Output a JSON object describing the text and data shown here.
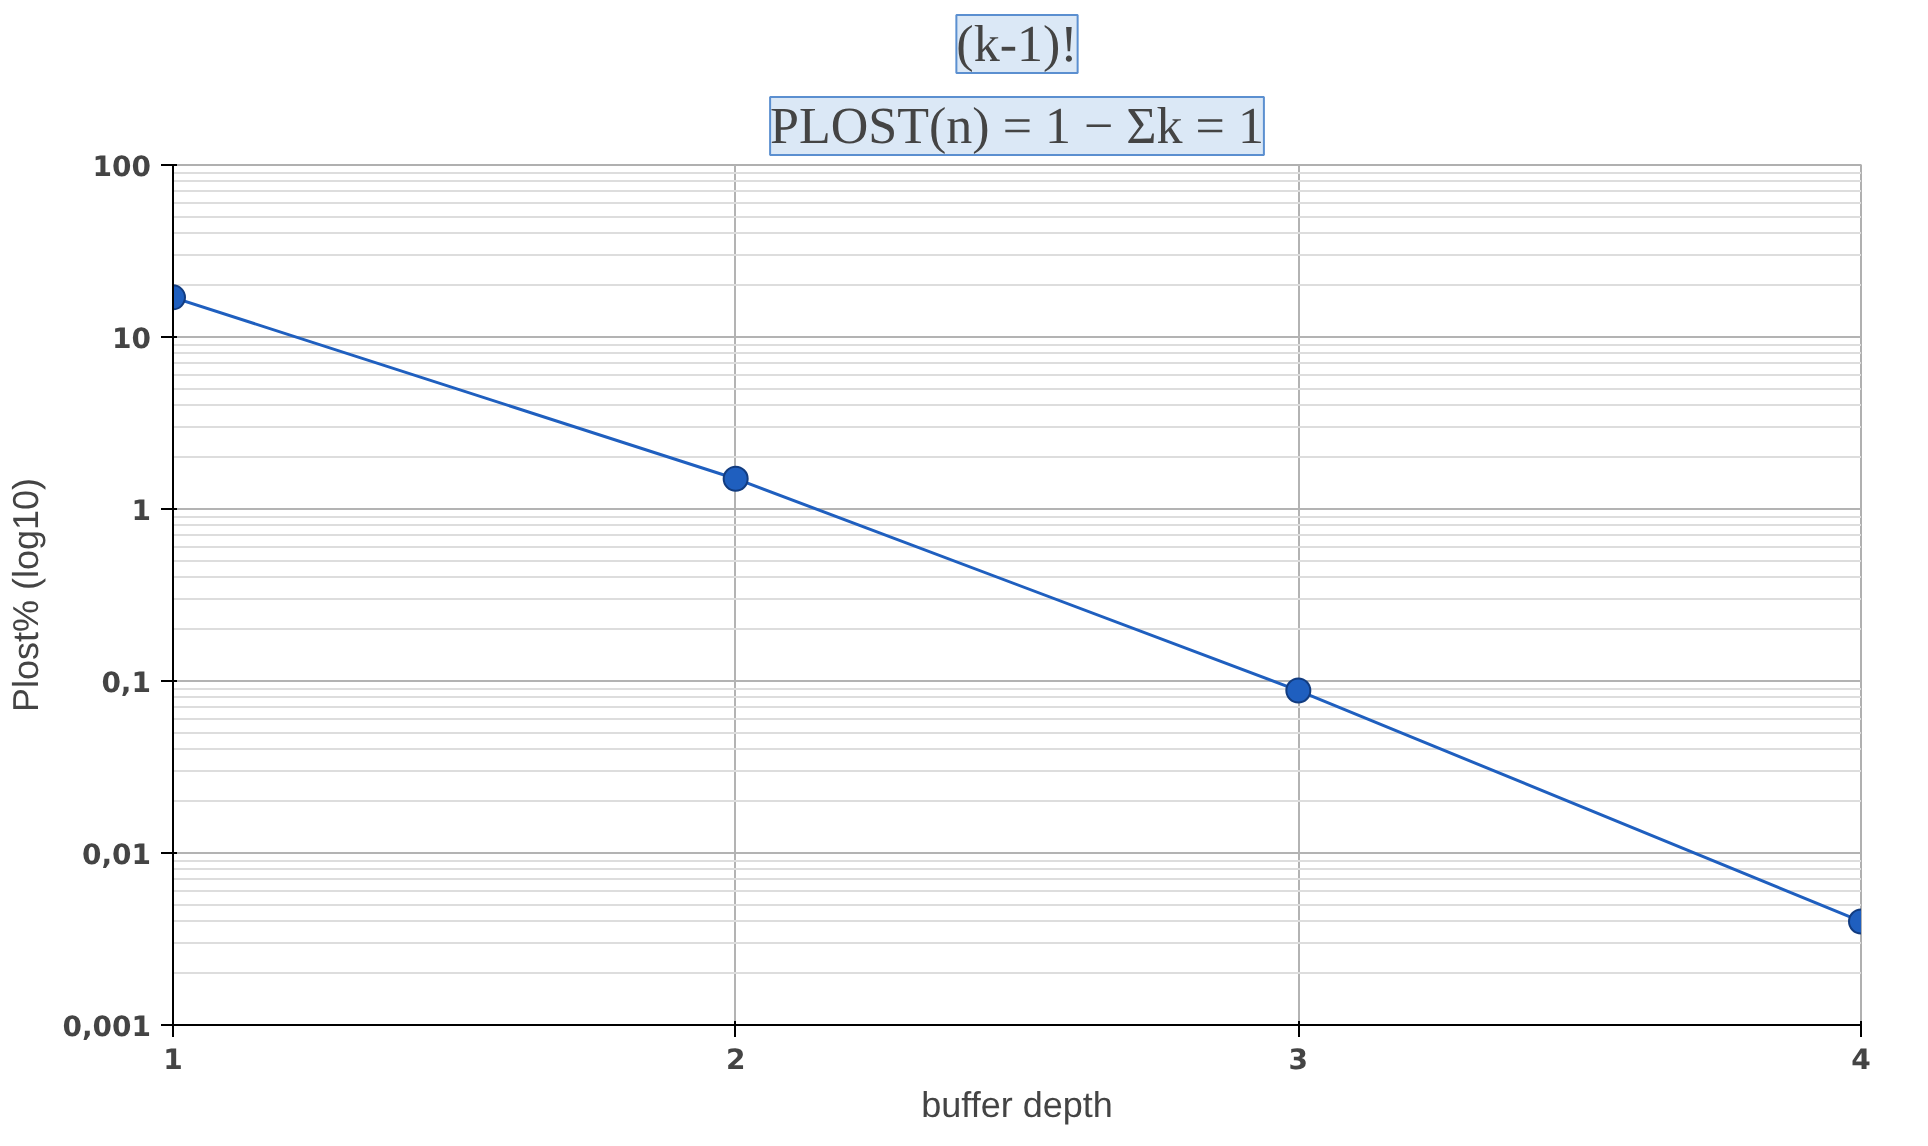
{
  "chart_data": {
    "type": "line",
    "xlabel": "buffer depth",
    "ylabel": "Plost% (log10)",
    "x": [
      1,
      2,
      3,
      4
    ],
    "series": [
      {
        "color": "#1f5fbf",
        "values": [
          17,
          1.5,
          0.088,
          0.004
        ]
      }
    ],
    "xlim": [
      1,
      4
    ],
    "xticks": [
      1,
      2,
      3,
      4
    ],
    "ylim": [
      0.001,
      100
    ],
    "yticks": [
      {
        "value": 0.001,
        "label": "0,001"
      },
      {
        "value": 0.01,
        "label": "0,01"
      },
      {
        "value": 0.1,
        "label": "0,1"
      },
      1,
      10,
      100
    ],
    "log": "y",
    "grid": true,
    "marker": "circle",
    "line_style": "solid",
    "annotations": [
      "PLOST(n) = 1 − Σk = 1",
      "(k-1)!"
    ]
  }
}
